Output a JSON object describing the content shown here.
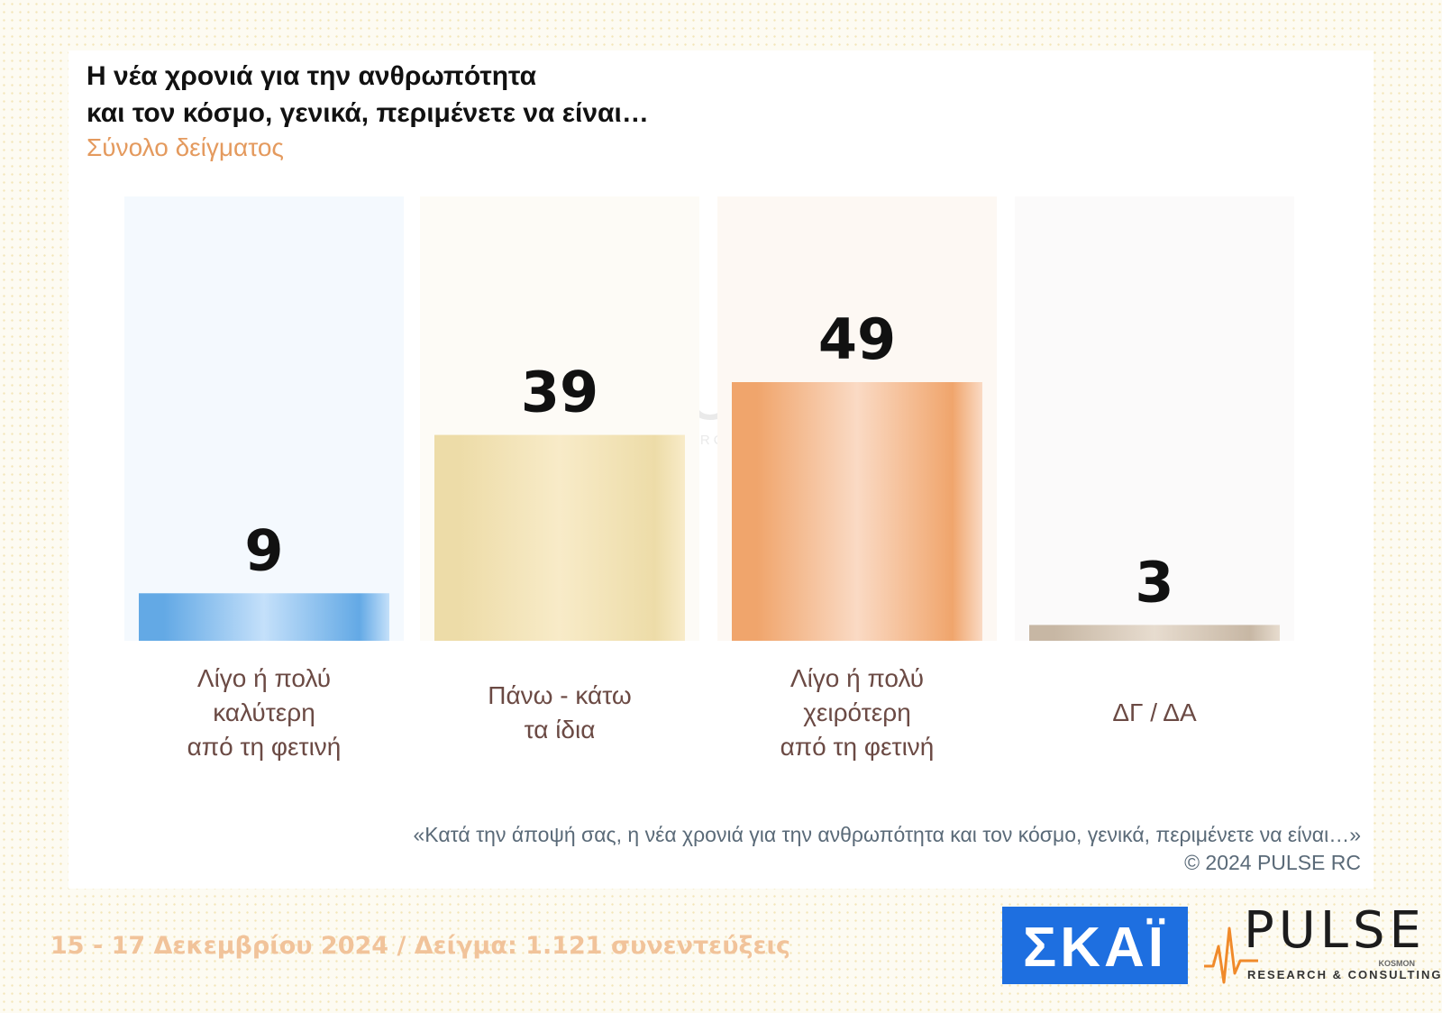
{
  "title_lines": [
    "Η νέα χρονιά για την ανθρωπότητα",
    "και τον κόσμο, γενικά, περιμένετε να είναι…"
  ],
  "subtitle": "Σύνολο δείγματος",
  "watermark": {
    "brand": "PULSE",
    "tagline": "RESEARCH & CONSULTING"
  },
  "question": "«Κατά την άποψή σας, η νέα χρονιά για την ανθρωπότητα και τον κόσμο, γενικά, περιμένετε να είναι…»",
  "copyright": "©  2024  PULSE RC",
  "footer": {
    "date_sample": "15 - 17 Δεκεμβρίου 2024  /  Δείγμα:  1.121 συνεντεύξεις"
  },
  "logos": {
    "skai": "ΣΚΑΪ",
    "pulse": "PULSE",
    "pulse_tag": "KOSMON",
    "pulse_sub": "RESEARCH & CONSULTING"
  },
  "chart_data": {
    "type": "bar",
    "title": "Η νέα χρονιά για την ανθρωπότητα και τον κόσμο, γενικά, περιμένετε να είναι…",
    "subtitle": "Σύνολο δείγματος",
    "categories": [
      [
        "Λίγο ή πολύ",
        "καλύτερη",
        "από τη φετινή"
      ],
      [
        "Πάνω - κάτω",
        "τα ίδια"
      ],
      [
        "Λίγο ή πολύ",
        "χειρότερη",
        "από τη φετινή"
      ],
      [
        "ΔΓ / ΔΑ"
      ]
    ],
    "values": [
      9,
      39,
      49,
      3
    ],
    "ylim": [
      0,
      84
    ],
    "grid": false,
    "legend": "none",
    "colors": {
      "bar_light": [
        "#c4e0fa",
        "#f8ebc8",
        "#fadac4",
        "#e7dccf"
      ],
      "bar_dark": [
        "#63a9e5",
        "#eddca8",
        "#f0a56c",
        "#c7b7a4"
      ],
      "column_bg": [
        "#f4f9fe",
        "#fdfbf6",
        "#fdf8f3",
        "#fbfafa"
      ],
      "value_label": "#111111",
      "category_label": "#6b4a44"
    }
  }
}
